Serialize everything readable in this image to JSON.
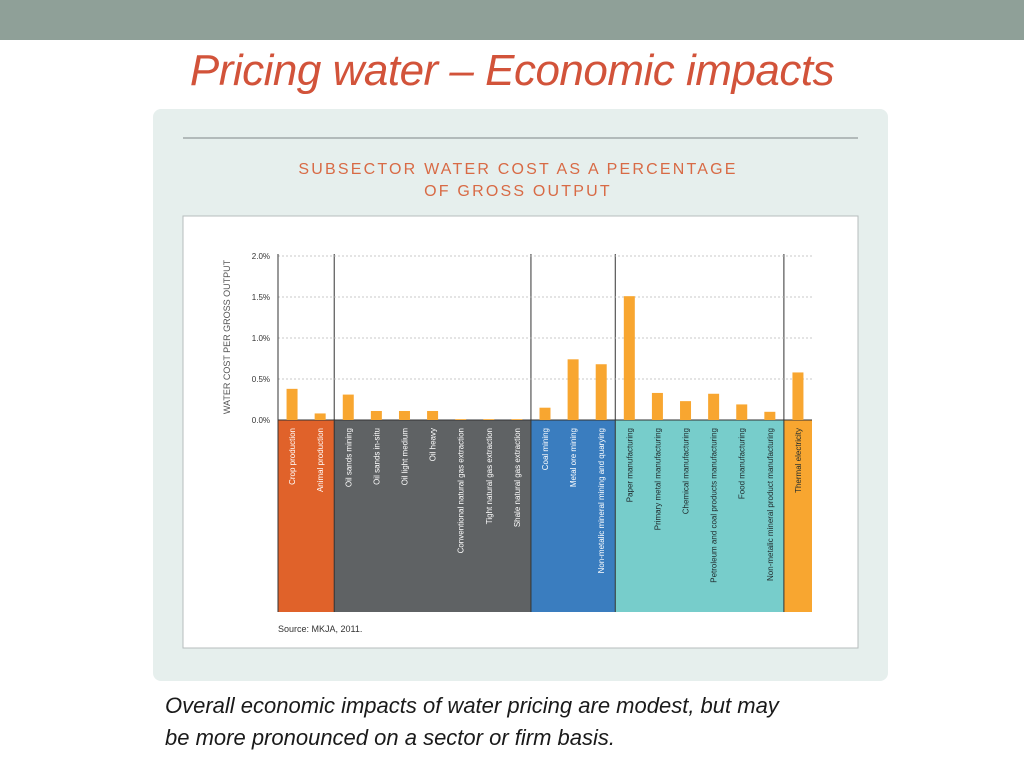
{
  "slide": {
    "title": "Pricing water – Economic impacts",
    "caption_lines": [
      "Overall economic impacts of water pricing are modest, but may",
      "be more pronounced on a sector or firm basis."
    ]
  },
  "colors": {
    "topbar": "#8fa098",
    "title": "#d2533a",
    "panel": "#e6efed",
    "bar": "#f8a630",
    "agriculture": "#e0622a",
    "oil_gas": "#5f6264",
    "mining": "#3a7dbf",
    "manufacturing": "#77cdcb",
    "electricity": "#f8a630",
    "chart_title": "#d86a45"
  },
  "chart_data": {
    "type": "bar",
    "title_lines": [
      "SUBSECTOR WATER COST AS A PERCENTAGE",
      "OF GROSS OUTPUT"
    ],
    "ylabel": "WATER COST PER GROSS OUTPUT",
    "yticks": [
      "2.0%",
      "1.5%",
      "1.0%",
      "0.5%",
      "0.0%"
    ],
    "ylim": [
      0,
      2.0
    ],
    "grid": true,
    "source": "Source: MKJA, 2011.",
    "categories": [
      "Crop production",
      "Animal production",
      "Oil sands mining",
      "Oil sands in-situ",
      "Oil light medium",
      "Oil heavy",
      "Conventional natural gas extraction",
      "Tight natural gas extraction",
      "Shale natural gas extraction",
      "Coal mining",
      "Metal ore mining",
      "Non-metalic mineral mining and quarying",
      "Paper manufacturing",
      "Primary metal manufacturing",
      "Chemical manufacturing",
      "Petroleum and coal products manufacturing",
      "Food manufacturing",
      "Non-metalic mineral product manufacturing",
      "Thermal electricity"
    ],
    "values": [
      0.38,
      0.08,
      0.31,
      0.11,
      0.11,
      0.11,
      0.01,
      0.01,
      0.01,
      0.15,
      0.74,
      0.68,
      1.51,
      0.33,
      0.23,
      0.32,
      0.19,
      0.1,
      0.58
    ],
    "groups": [
      {
        "start": 0,
        "end": 1,
        "color": "#e0622a",
        "label_color": "#ffffff"
      },
      {
        "start": 2,
        "end": 8,
        "color": "#5f6264",
        "label_color": "#ffffff"
      },
      {
        "start": 9,
        "end": 11,
        "color": "#3a7dbf",
        "label_color": "#ffffff"
      },
      {
        "start": 12,
        "end": 17,
        "color": "#77cdcb",
        "label_color": "#1f2a2c"
      },
      {
        "start": 18,
        "end": 18,
        "color": "#f8a630",
        "label_color": "#1f2a2c"
      }
    ]
  }
}
